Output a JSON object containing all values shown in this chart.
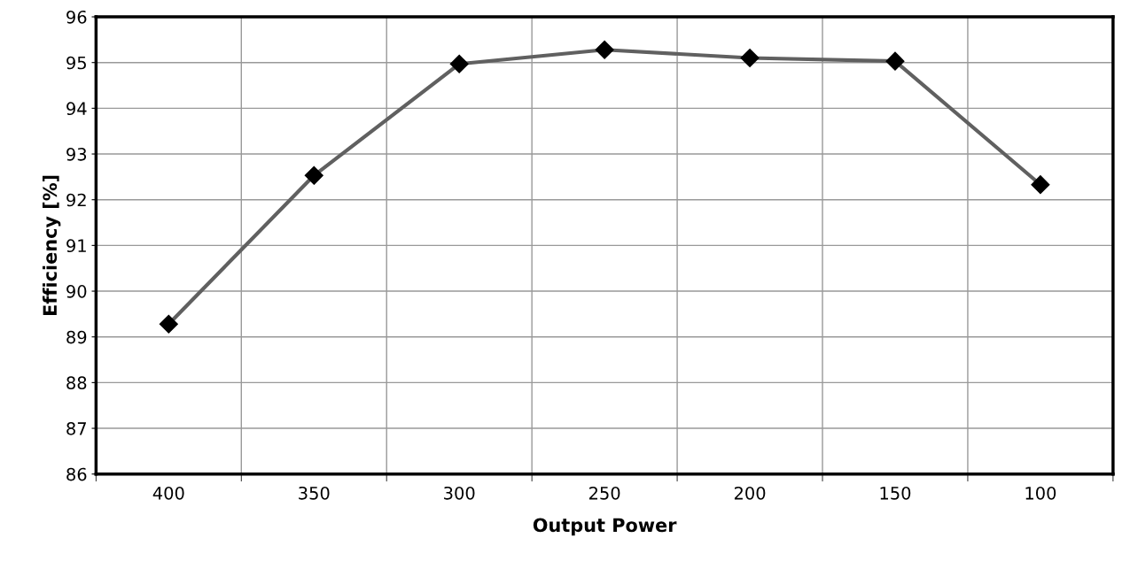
{
  "chart_data": {
    "type": "line",
    "xlabel": "Output Power",
    "ylabel": "Efficiency [%]",
    "categories": [
      "400",
      "350",
      "300",
      "250",
      "200",
      "150",
      "100"
    ],
    "series": [
      {
        "color": "#606060",
        "values": [
          89.28,
          92.53,
          94.97,
          95.28,
          95.1,
          95.03,
          92.33
        ]
      }
    ],
    "ylim": [
      86,
      96
    ],
    "yticks": [
      86,
      87,
      88,
      89,
      90,
      91,
      92,
      93,
      94,
      95,
      96
    ],
    "grid": true,
    "marker": "diamond",
    "line_style": "solid"
  }
}
